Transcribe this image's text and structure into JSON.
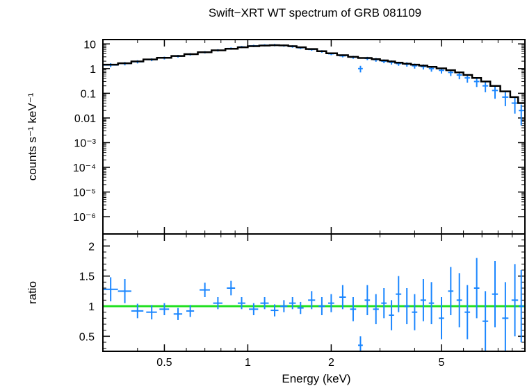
{
  "chart_data": {
    "type": "scatter",
    "title": "Swift−XRT WT spectrum of GRB 081109",
    "xlabel": "Energy (keV)",
    "x_scale": "log",
    "xlim": [
      0.3,
      10
    ],
    "x_ticks": [
      {
        "value": 0.5,
        "label": "0.5"
      },
      {
        "value": 1,
        "label": "1"
      },
      {
        "value": 2,
        "label": "2"
      },
      {
        "value": 5,
        "label": "5"
      }
    ],
    "colors": {
      "data": "#1a86ff",
      "model": "#000000",
      "unity": "#22e022",
      "axes": "#000000"
    },
    "panels": [
      {
        "id": "spectrum",
        "ylabel": "counts s⁻¹ keV⁻¹",
        "y_scale": "log",
        "ylim": [
          2e-07,
          15
        ],
        "y_ticks": [
          {
            "value": 10,
            "label": "10"
          },
          {
            "value": 1,
            "label": "1"
          },
          {
            "value": 0.1,
            "label": "0.1"
          },
          {
            "value": 0.01,
            "label": "0.01"
          },
          {
            "value": 0.001,
            "label": "10⁻³"
          },
          {
            "value": 0.0001,
            "label": "10⁻⁴"
          },
          {
            "value": 1e-05,
            "label": "10⁻⁵"
          },
          {
            "value": 1e-06,
            "label": "10⁻⁶"
          }
        ],
        "series": [
          {
            "kind": "errorbar",
            "x": [
              0.32,
              0.36,
              0.4,
              0.45,
              0.5,
              0.56,
              0.62,
              0.7,
              0.78,
              0.87,
              0.95,
              1.05,
              1.15,
              1.25,
              1.35,
              1.45,
              1.55,
              1.7,
              1.85,
              2.0,
              2.2,
              2.4,
              2.55,
              2.7,
              2.9,
              3.1,
              3.3,
              3.5,
              3.75,
              4.0,
              4.3,
              4.6,
              5.0,
              5.4,
              5.8,
              6.2,
              6.7,
              7.2,
              7.8,
              8.5,
              9.2,
              9.7
            ],
            "xerr": [
              0.02,
              0.02,
              0.02,
              0.02,
              0.02,
              0.02,
              0.02,
              0.03,
              0.03,
              0.03,
              0.03,
              0.04,
              0.04,
              0.04,
              0.04,
              0.04,
              0.04,
              0.05,
              0.05,
              0.05,
              0.06,
              0.06,
              0.05,
              0.06,
              0.07,
              0.07,
              0.07,
              0.08,
              0.08,
              0.09,
              0.1,
              0.1,
              0.11,
              0.12,
              0.13,
              0.14,
              0.15,
              0.17,
              0.19,
              0.22,
              0.25,
              0.2
            ],
            "y": [
              1.4,
              1.6,
              1.9,
              2.3,
              2.7,
              3.2,
              3.8,
              4.6,
              5.5,
              6.5,
              7.5,
              8.3,
              8.8,
              9.0,
              8.6,
              7.9,
              7.0,
              6.0,
              5.0,
              4.0,
              3.3,
              2.9,
              1.0,
              2.6,
              2.3,
              2.0,
              1.8,
              1.6,
              1.5,
              1.3,
              1.2,
              1.0,
              0.85,
              0.7,
              0.55,
              0.42,
              0.3,
              0.2,
              0.13,
              0.07,
              0.04,
              0.02
            ],
            "yerr": [
              0.25,
              0.25,
              0.28,
              0.3,
              0.35,
              0.4,
              0.45,
              0.5,
              0.6,
              0.7,
              0.8,
              0.9,
              0.9,
              1.0,
              0.9,
              0.9,
              0.8,
              0.7,
              0.6,
              0.5,
              0.45,
              0.4,
              0.3,
              0.4,
              0.4,
              0.35,
              0.35,
              0.3,
              0.3,
              0.3,
              0.28,
              0.25,
              0.22,
              0.2,
              0.18,
              0.15,
              0.12,
              0.09,
              0.07,
              0.04,
              0.025,
              0.015
            ]
          },
          {
            "kind": "step",
            "x": [
              0.3,
              0.34,
              0.38,
              0.42,
              0.47,
              0.53,
              0.59,
              0.66,
              0.74,
              0.83,
              0.92,
              1.0,
              1.1,
              1.2,
              1.3,
              1.4,
              1.5,
              1.62,
              1.78,
              1.92,
              2.1,
              2.3,
              2.5,
              2.8,
              3.0,
              3.2,
              3.4,
              3.62,
              3.88,
              4.15,
              4.45,
              4.8,
              5.2,
              5.6,
              6.0,
              6.45,
              6.95,
              7.5,
              8.15,
              8.85,
              9.45,
              10.0
            ],
            "y": [
              1.45,
              1.65,
              1.95,
              2.35,
              2.75,
              3.25,
              3.85,
              4.6,
              5.5,
              6.4,
              7.3,
              8.1,
              8.6,
              8.9,
              8.7,
              8.1,
              7.3,
              6.2,
              5.1,
              4.2,
              3.5,
              3.0,
              2.7,
              2.4,
              2.15,
              1.95,
              1.75,
              1.58,
              1.45,
              1.32,
              1.18,
              1.02,
              0.86,
              0.7,
              0.55,
              0.42,
              0.3,
              0.2,
              0.12,
              0.07,
              0.04
            ]
          }
        ]
      },
      {
        "id": "ratio",
        "ylabel": "ratio",
        "y_scale": "linear",
        "ylim": [
          0.25,
          2.2
        ],
        "y_ticks": [
          {
            "value": 0.5,
            "label": "0.5"
          },
          {
            "value": 1,
            "label": "1"
          },
          {
            "value": 1.5,
            "label": "1.5"
          },
          {
            "value": 2,
            "label": "2"
          }
        ],
        "reference_line": 1,
        "series": [
          {
            "kind": "errorbar",
            "x": [
              0.32,
              0.36,
              0.4,
              0.45,
              0.5,
              0.56,
              0.62,
              0.7,
              0.78,
              0.87,
              0.95,
              1.05,
              1.15,
              1.25,
              1.35,
              1.45,
              1.55,
              1.7,
              1.85,
              2.0,
              2.2,
              2.4,
              2.55,
              2.7,
              2.9,
              3.1,
              3.3,
              3.5,
              3.75,
              4.0,
              4.3,
              4.6,
              5.0,
              5.4,
              5.8,
              6.2,
              6.7,
              7.2,
              7.8,
              8.5,
              9.2,
              9.7
            ],
            "xerr": [
              0.02,
              0.02,
              0.02,
              0.02,
              0.02,
              0.02,
              0.02,
              0.03,
              0.03,
              0.03,
              0.03,
              0.04,
              0.04,
              0.04,
              0.04,
              0.04,
              0.04,
              0.05,
              0.05,
              0.05,
              0.06,
              0.06,
              0.05,
              0.06,
              0.07,
              0.07,
              0.07,
              0.08,
              0.08,
              0.09,
              0.1,
              0.1,
              0.11,
              0.12,
              0.13,
              0.14,
              0.15,
              0.17,
              0.19,
              0.22,
              0.25,
              0.2
            ],
            "y": [
              1.28,
              1.25,
              0.92,
              0.9,
              0.95,
              0.87,
              0.92,
              1.27,
              1.05,
              1.3,
              1.05,
              0.95,
              1.05,
              0.93,
              1.0,
              1.05,
              0.97,
              1.1,
              1.0,
              1.05,
              1.15,
              0.95,
              0.35,
              1.1,
              0.95,
              1.05,
              0.85,
              1.2,
              1.0,
              0.9,
              1.1,
              1.05,
              0.8,
              1.25,
              1.1,
              0.9,
              1.3,
              0.75,
              1.2,
              0.8,
              1.1,
              1.0
            ],
            "yerr": [
              0.2,
              0.2,
              0.12,
              0.12,
              0.1,
              0.1,
              0.1,
              0.12,
              0.1,
              0.12,
              0.1,
              0.1,
              0.1,
              0.1,
              0.1,
              0.1,
              0.1,
              0.15,
              0.15,
              0.15,
              0.2,
              0.2,
              0.15,
              0.25,
              0.25,
              0.25,
              0.25,
              0.3,
              0.3,
              0.3,
              0.35,
              0.35,
              0.35,
              0.4,
              0.45,
              0.45,
              0.5,
              0.5,
              0.55,
              0.6,
              0.6,
              0.6
            ]
          }
        ]
      }
    ]
  }
}
